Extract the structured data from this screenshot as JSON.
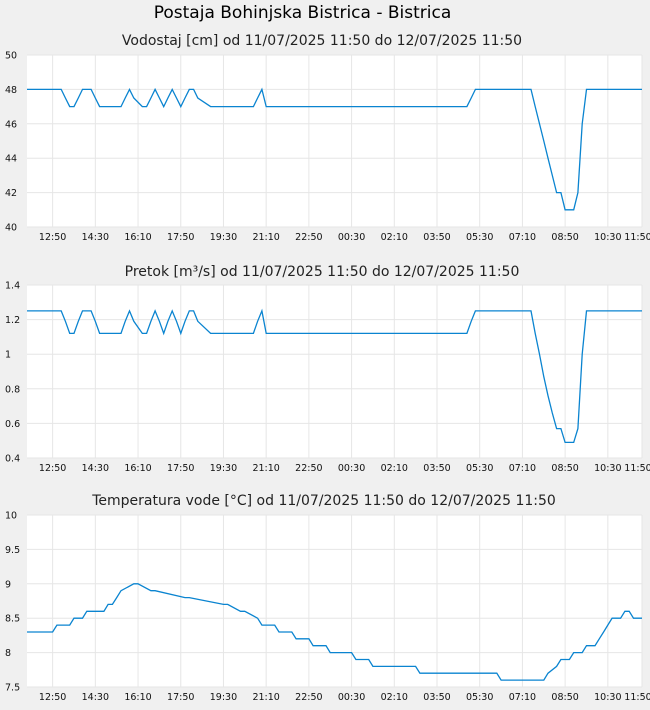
{
  "station_title": "Postaja Bohinjska Bistrica - Bistrica",
  "chart_data": [
    {
      "type": "line",
      "title": "Vodostaj [cm] od 11/07/2025 11:50 do 12/07/2025 11:50",
      "xlabel": "",
      "ylabel": "",
      "x_range": [
        "11:50",
        "11:50"
      ],
      "ylim": [
        40,
        50
      ],
      "yticks": [
        "40",
        "42",
        "44",
        "46",
        "48",
        "50"
      ],
      "xticks": [
        "12:50",
        "14:30",
        "16:10",
        "17:50",
        "19:30",
        "21:10",
        "22:50",
        "00:30",
        "02:10",
        "03:50",
        "05:30",
        "07:10",
        "08:50",
        "10:30",
        "11:50"
      ],
      "grid": true,
      "series": [
        {
          "color": "#0a84d0",
          "x": [
            "11:50",
            "13:10",
            "13:20",
            "13:30",
            "13:40",
            "13:50",
            "14:00",
            "14:10",
            "14:20",
            "14:30",
            "14:40",
            "15:10",
            "15:20",
            "15:30",
            "15:40",
            "15:50",
            "16:00",
            "16:20",
            "16:30",
            "16:40",
            "16:50",
            "17:00",
            "17:10",
            "17:20",
            "17:30",
            "17:40",
            "17:50",
            "18:00",
            "18:10",
            "18:20",
            "18:30",
            "19:00",
            "20:40",
            "20:50",
            "21:00",
            "21:10",
            "05:00",
            "05:10",
            "05:20",
            "06:50",
            "07:30",
            "07:40",
            "07:50",
            "08:00",
            "08:10",
            "08:20",
            "08:30",
            "08:40",
            "08:50",
            "09:00",
            "09:10",
            "09:20",
            "09:30",
            "09:40",
            "11:50"
          ],
          "values": [
            48,
            48,
            47.5,
            47,
            47,
            47.5,
            48,
            48,
            48,
            47.5,
            47,
            47,
            47,
            47,
            47.5,
            48,
            47.5,
            47,
            47,
            47.5,
            48,
            47.5,
            47,
            47.5,
            48,
            47.5,
            47,
            47.5,
            48,
            48,
            47.5,
            47,
            47,
            47.5,
            48,
            47,
            47,
            47.5,
            48,
            48,
            48,
            47,
            46,
            45,
            44,
            43,
            42,
            42,
            41,
            41,
            41,
            42,
            46,
            48,
            48
          ]
        }
      ]
    },
    {
      "type": "line",
      "title": "Pretok [m³/s] od 11/07/2025 11:50 do 12/07/2025 11:50",
      "xlabel": "",
      "ylabel": "",
      "x_range": [
        "11:50",
        "11:50"
      ],
      "ylim": [
        0.4,
        1.4
      ],
      "yticks": [
        "0.4",
        "0.6",
        "0.8",
        "1",
        "1.2",
        "1.4"
      ],
      "xticks": [
        "12:50",
        "14:30",
        "16:10",
        "17:50",
        "19:30",
        "21:10",
        "22:50",
        "00:30",
        "02:10",
        "03:50",
        "05:30",
        "07:10",
        "08:50",
        "10:30",
        "11:50"
      ],
      "grid": true,
      "series": [
        {
          "color": "#0a84d0",
          "x": [
            "11:50",
            "13:10",
            "13:20",
            "13:30",
            "13:40",
            "13:50",
            "14:00",
            "14:10",
            "14:20",
            "14:30",
            "14:40",
            "15:10",
            "15:20",
            "15:30",
            "15:40",
            "15:50",
            "16:00",
            "16:20",
            "16:30",
            "16:40",
            "16:50",
            "17:00",
            "17:10",
            "17:20",
            "17:30",
            "17:40",
            "17:50",
            "18:00",
            "18:10",
            "18:20",
            "18:30",
            "19:00",
            "20:40",
            "20:50",
            "21:00",
            "21:10",
            "05:00",
            "05:10",
            "05:20",
            "06:50",
            "07:30",
            "07:40",
            "07:50",
            "08:00",
            "08:10",
            "08:20",
            "08:30",
            "08:40",
            "08:50",
            "09:00",
            "09:10",
            "09:20",
            "09:30",
            "09:40",
            "11:50"
          ],
          "values": [
            1.25,
            1.25,
            1.19,
            1.12,
            1.12,
            1.19,
            1.25,
            1.25,
            1.25,
            1.19,
            1.12,
            1.12,
            1.12,
            1.12,
            1.19,
            1.25,
            1.19,
            1.12,
            1.12,
            1.19,
            1.25,
            1.19,
            1.12,
            1.19,
            1.25,
            1.19,
            1.12,
            1.19,
            1.25,
            1.25,
            1.19,
            1.12,
            1.12,
            1.19,
            1.25,
            1.12,
            1.12,
            1.19,
            1.25,
            1.25,
            1.25,
            1.12,
            1.0,
            0.87,
            0.76,
            0.66,
            0.57,
            0.57,
            0.49,
            0.49,
            0.49,
            0.57,
            1.0,
            1.25,
            1.25
          ]
        }
      ]
    },
    {
      "type": "line",
      "title": "Temperatura vode [°C] od 11/07/2025 11:50 do 12/07/2025 11:50",
      "xlabel": "",
      "ylabel": "",
      "x_range": [
        "11:50",
        "11:50"
      ],
      "ylim": [
        7.5,
        10
      ],
      "yticks": [
        "7.5",
        "8",
        "8.5",
        "9",
        "9.5",
        "10"
      ],
      "xticks": [
        "12:50",
        "14:30",
        "16:10",
        "17:50",
        "19:30",
        "21:10",
        "22:50",
        "00:30",
        "02:10",
        "03:50",
        "05:30",
        "07:10",
        "08:50",
        "10:30",
        "11:50"
      ],
      "grid": true,
      "series": [
        {
          "color": "#0a84d0",
          "x": [
            "11:50",
            "12:50",
            "13:00",
            "13:30",
            "13:40",
            "14:00",
            "14:10",
            "14:50",
            "15:00",
            "15:10",
            "15:20",
            "15:30",
            "16:00",
            "16:10",
            "16:40",
            "16:50",
            "18:00",
            "18:10",
            "19:30",
            "19:40",
            "20:10",
            "20:20",
            "20:50",
            "21:00",
            "21:30",
            "21:40",
            "22:10",
            "22:20",
            "22:50",
            "23:00",
            "23:30",
            "23:40",
            "00:30",
            "00:40",
            "01:10",
            "01:20",
            "03:00",
            "03:10",
            "06:10",
            "06:20",
            "08:00",
            "08:10",
            "08:30",
            "08:40",
            "09:00",
            "09:10",
            "09:30",
            "09:40",
            "10:00",
            "10:10",
            "10:20",
            "10:30",
            "10:40",
            "11:00",
            "11:10",
            "11:20",
            "11:30",
            "11:50"
          ],
          "values": [
            8.3,
            8.3,
            8.4,
            8.4,
            8.5,
            8.5,
            8.6,
            8.6,
            8.7,
            8.7,
            8.8,
            8.9,
            9.0,
            9.0,
            8.9,
            8.9,
            8.8,
            8.8,
            8.7,
            8.7,
            8.6,
            8.6,
            8.5,
            8.4,
            8.4,
            8.3,
            8.3,
            8.2,
            8.2,
            8.1,
            8.1,
            8.0,
            8.0,
            7.9,
            7.9,
            7.8,
            7.8,
            7.7,
            7.7,
            7.6,
            7.6,
            7.7,
            7.8,
            7.9,
            7.9,
            8.0,
            8.0,
            8.1,
            8.1,
            8.2,
            8.3,
            8.4,
            8.5,
            8.5,
            8.6,
            8.6,
            8.5,
            8.5
          ]
        }
      ]
    }
  ]
}
